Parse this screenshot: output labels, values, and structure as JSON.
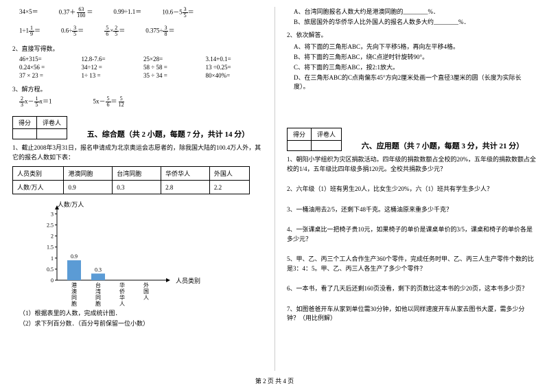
{
  "left": {
    "math_row1": [
      "34×5＝",
      "0.37＋",
      "＝",
      "0.99÷1.1＝",
      "10.6－5",
      "＝"
    ],
    "frac1": {
      "num": "63",
      "den": "100"
    },
    "frac2": {
      "num": "3",
      "den": "5"
    },
    "math_row2": [
      "1÷1",
      "＝",
      "0.6÷",
      "＝",
      "×",
      "＝",
      "0.375÷",
      "＝"
    ],
    "frac3": {
      "num": "1",
      "den": "9"
    },
    "frac4": {
      "num": "3",
      "den": "5"
    },
    "frac5a": {
      "num": "5",
      "den": "6"
    },
    "frac5b": {
      "num": "2",
      "den": "5"
    },
    "frac6": {
      "num": "3",
      "den": "8"
    },
    "q2_label": "2、直接写得数。",
    "calc_items": [
      "46+315=",
      "12.8-7.6=",
      "25×28=",
      "3.14+0.1=",
      "0.24×56 =",
      "34÷12 =",
      "58 ÷ 58 =",
      "13 ÷0.25=",
      "37 × 23 =",
      "1÷ 13 =",
      "35 ÷ 34 =",
      "80×40%="
    ],
    "q3_label": "3、解方程。",
    "eq1_parts": [
      "x－",
      "x＝1"
    ],
    "eq1_frac1": {
      "num": "2",
      "den": "3"
    },
    "eq1_frac2": {
      "num": "1",
      "den": "5"
    },
    "eq2_parts": [
      "5x－",
      "＝"
    ],
    "eq2_frac1": {
      "num": "5",
      "den": "6"
    },
    "eq2_frac2": {
      "num": "5",
      "den": "12"
    },
    "score_labels": [
      "得分",
      "评卷人"
    ],
    "section5_title": "五、综合题（共 2 小题，每题 7 分，共计 14 分）",
    "q5_1_text": "1、截止2008年3月31日，报名申请成为北京奥运会志愿者的，除我国大陆的100.4万人外，其它的报名人数如下表：",
    "table": {
      "headers": [
        "人员类别",
        "港澳同胞",
        "台湾同胞",
        "华侨华人",
        "外国人"
      ],
      "row_label": "人数/万人",
      "values": [
        "0.9",
        "0.3",
        "2.8",
        "2.2"
      ]
    },
    "chart": {
      "y_title": "人数/万人",
      "x_title": "人员类别",
      "y_ticks": [
        "3",
        "2.5",
        "2",
        "1.5",
        "1",
        "0.5",
        "0"
      ],
      "bars": [
        {
          "label": "港澳同胞",
          "value": 0.9,
          "display": "0.9"
        },
        {
          "label": "台湾同胞",
          "value": 0.3,
          "display": "0.3"
        },
        {
          "label": "华侨华人",
          "value": 0,
          "display": ""
        },
        {
          "label": "外国人",
          "value": 0,
          "display": ""
        }
      ],
      "bar_color": "#5b9bd5",
      "grid_color": "#000000",
      "y_max": 3.2
    },
    "sub_q1": "（1）根据表里的人数，完成统计图．",
    "sub_q2": "（2）求下列百分数．（百分号前保留一位小数）"
  },
  "right": {
    "line_a": "A、台湾同胞报名人数大约是港澳同胞的________%．",
    "line_b": "B、旅居国外的华侨华人比外国人的报名人数多大约________%．",
    "q2_label": "2、依次解答。",
    "sub_a": "A、将下面的三角形ABC，先向下平移5格，再向左平移4格。",
    "sub_b": "B、将下面的三角形ABC，绕C点逆时针旋转90°。",
    "sub_c": "C、将下面的三角形ABC，按2:1放大。",
    "sub_d": "D、在三角形ABC的C点南偏东45°方向2厘米处画一个直径3厘米的圆（长度为实际长度）。",
    "section6_title": "六、应用题（共 7 小题，每题 3 分，共计 21 分）",
    "q6_1": "1、朝阳小学组织为灾区捐款活动。四年级的捐款数额占全校的20%，五年级的捐款数额占全校的1/4，五年级比四年级多捐120元。全校共捐款多少元？",
    "q6_2": "2、六年级（1）班有男生20人，比女生少20%，六（1）班共有学生多少人？",
    "q6_3": "3、一桶油用去2/5，还剩下48千克。这桶油原来重多少千克？",
    "q6_4": "4、一张课桌比一把椅子贵10元，如果椅子的单价是课桌单价的3/5，课桌和椅子的单价各是多少元？",
    "q6_5": "5、甲、乙、丙三个工人合作生产360个零件，完成任务时甲、乙、丙三人生产零件个数的比是3：4：5。甲、乙、丙三人各生产了多少个零件？",
    "q6_6": "6、一本书，看了几天后还剩160页没看，剩下的页数比这本书的少20页，这本书多少页？",
    "q6_7": "7、如图爸爸开车从家到单位需30分钟，如他以同样速度开车从家去图书大厦，需多少分钟？（用比例解）"
  },
  "footer": "第 2 页 共 4 页"
}
